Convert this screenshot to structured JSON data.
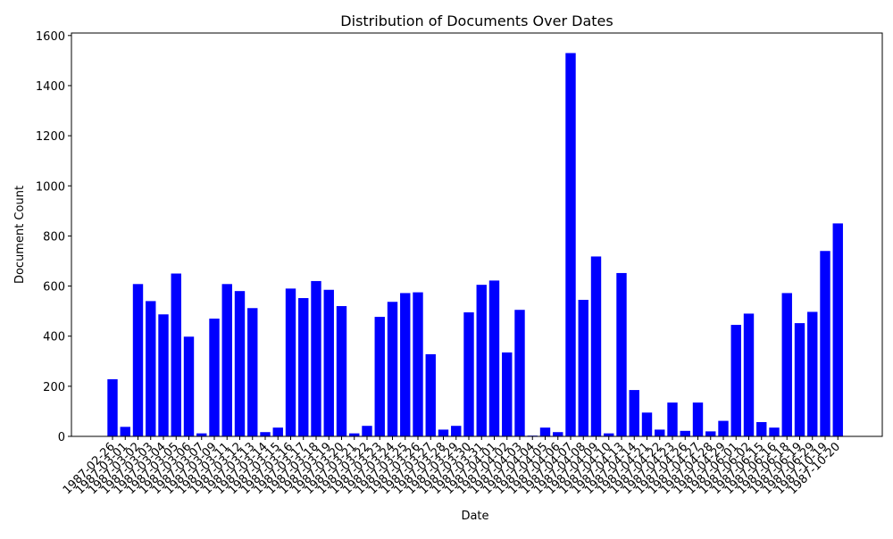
{
  "chart_data": {
    "type": "bar",
    "title": "Distribution of Documents Over Dates",
    "x_label": "Date",
    "y_label": "Document Count",
    "categories": [
      "1987-02-26",
      "1987-03-01",
      "1987-03-02",
      "1987-03-03",
      "1987-03-04",
      "1987-03-05",
      "1987-03-06",
      "1987-03-07",
      "1987-03-09",
      "1987-03-11",
      "1987-03-12",
      "1987-03-13",
      "1987-03-14",
      "1987-03-15",
      "1987-03-16",
      "1987-03-17",
      "1987-03-18",
      "1987-03-19",
      "1987-03-20",
      "1987-03-21",
      "1987-03-22",
      "1987-03-23",
      "1987-03-24",
      "1987-03-25",
      "1987-03-26",
      "1987-03-27",
      "1987-03-28",
      "1987-03-29",
      "1987-03-30",
      "1987-03-31",
      "1987-04-01",
      "1987-04-02",
      "1987-04-03",
      "1987-04-04",
      "1987-04-05",
      "1987-04-06",
      "1987-04-07",
      "1987-04-08",
      "1987-04-09",
      "1987-04-10",
      "1987-04-13",
      "1987-04-14",
      "1987-04-21",
      "1987-04-22",
      "1987-04-23",
      "1987-04-26",
      "1987-04-27",
      "1987-04-28",
      "1987-04-29",
      "1987-06-01",
      "1987-06-02",
      "1987-06-15",
      "1987-06-16",
      "1987-06-18",
      "1987-06-19",
      "1987-06-29",
      "1987-10-19",
      "1987-10-20"
    ],
    "values": [
      228,
      38,
      608,
      540,
      487,
      650,
      398,
      12,
      470,
      608,
      580,
      512,
      17,
      35,
      590,
      552,
      620,
      585,
      520,
      12,
      42,
      477,
      537,
      572,
      575,
      328,
      27,
      42,
      495,
      605,
      622,
      335,
      505,
      3,
      35,
      17,
      1530,
      545,
      718,
      12,
      652,
      185,
      95,
      27,
      135,
      22,
      135,
      20,
      62,
      445,
      490,
      57,
      35,
      572,
      452,
      497,
      740,
      850
    ],
    "color": "#0000ff",
    "ylim": [
      0,
      1610
    ],
    "yticks": [
      0,
      200,
      400,
      600,
      800,
      1000,
      1200,
      1400,
      1600
    ],
    "grid": false
  }
}
